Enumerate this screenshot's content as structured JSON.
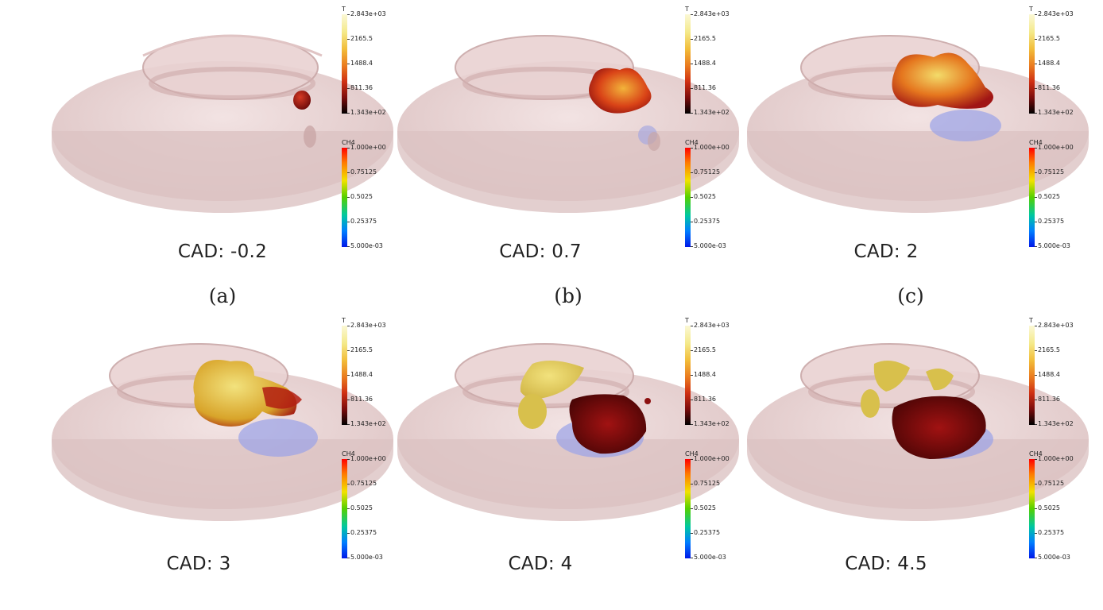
{
  "panels": [
    {
      "cad": "CAD: -0.2",
      "label": "(a)"
    },
    {
      "cad": "CAD: 0.7",
      "label": "(b)"
    },
    {
      "cad": "CAD: 2",
      "label": "(c)"
    },
    {
      "cad": "CAD: 3",
      "label": ""
    },
    {
      "cad": "CAD: 4",
      "label": ""
    },
    {
      "cad": "CAD: 4.5",
      "label": ""
    }
  ],
  "colorbars": {
    "T": {
      "title": "T",
      "ticks": [
        "2.843e+03",
        "2165.5",
        "1488.4",
        "811.36",
        "1.343e+02"
      ]
    },
    "CH4": {
      "title": "CH4",
      "ticks": [
        "1.000e+00",
        "0.75125",
        "0.5025",
        "0.25375",
        "5.000e-03"
      ]
    }
  },
  "colors": {
    "chamber": "#e7cdcd",
    "flame_hot": "#f0e27a",
    "flame_mid": "#e0561b",
    "flame_cool": "#8b0d0d",
    "fuel": "#9aa3e8"
  }
}
